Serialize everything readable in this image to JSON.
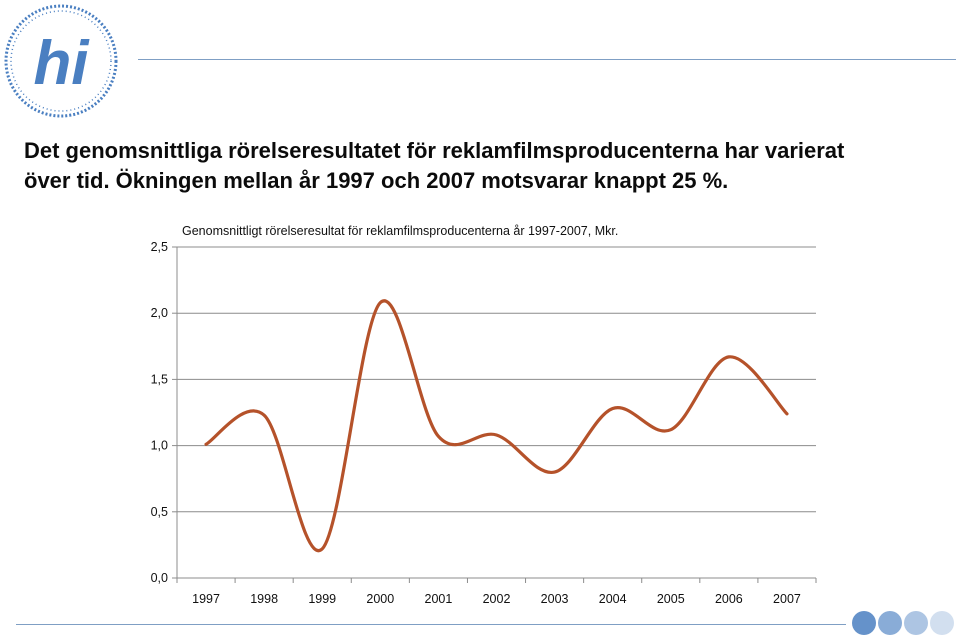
{
  "slide": {
    "headline_line1": "Det genomsnittliga rörelseresultatet för reklamfilmsproducenterna har varierat",
    "headline_line2": "över tid. Ökningen mellan år 1997 och 2007 motsvarar knappt 25 %.",
    "logo_text": "hi",
    "accent_color": "#4a7fc1",
    "line_color": "#7f9fc4"
  },
  "chart_data": {
    "type": "line",
    "title": "Genomsnittligt rörelseresultat för reklamfilmsproducenterna år 1997-2007, Mkr.",
    "xlabel": "",
    "ylabel": "",
    "categories": [
      "1997",
      "1998",
      "1999",
      "2000",
      "2001",
      "2002",
      "2003",
      "2004",
      "2005",
      "2006",
      "2007"
    ],
    "series": [
      {
        "values": [
          1.01,
          1.23,
          0.22,
          2.08,
          1.07,
          1.08,
          0.8,
          1.28,
          1.12,
          1.67,
          1.24
        ],
        "color": "#b5522a"
      }
    ],
    "ylim": [
      0,
      2.5
    ],
    "yticks": [
      "0,0",
      "0,5",
      "1,0",
      "1,5",
      "2,0",
      "2,5"
    ],
    "grid": true,
    "legend": "none"
  }
}
